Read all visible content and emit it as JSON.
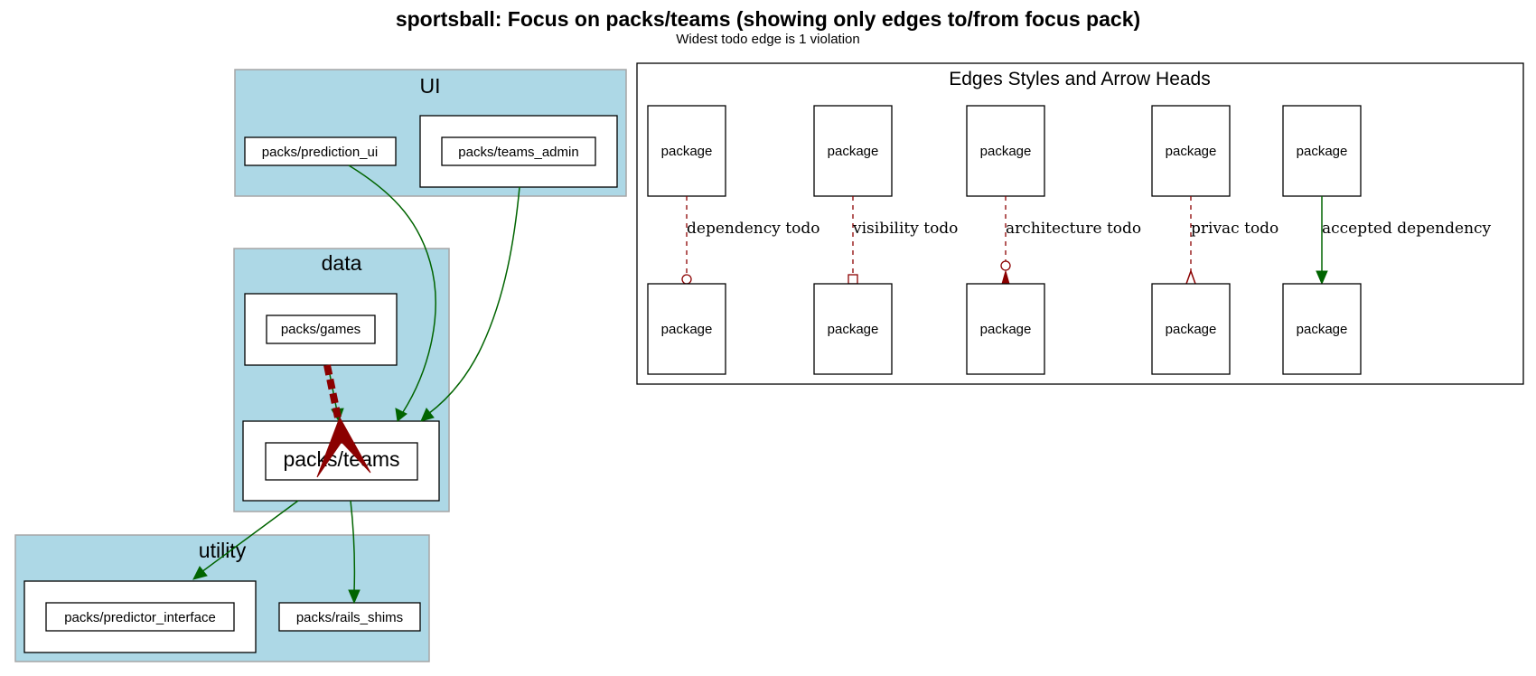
{
  "header": {
    "title": "sportsball: Focus on packs/teams (showing only edges to/from focus pack)",
    "subtitle": "Widest todo edge is 1 violation"
  },
  "clusters": {
    "ui": {
      "label": "UI"
    },
    "data": {
      "label": "data"
    },
    "utility": {
      "label": "utility"
    }
  },
  "packs": {
    "prediction_ui": "packs/prediction_ui",
    "teams_admin": "packs/teams_admin",
    "games": "packs/games",
    "teams": "packs/teams",
    "predictor_interface": "packs/predictor_interface",
    "rails_shims": "packs/rails_shims"
  },
  "legend": {
    "title": "Edges Styles and Arrow Heads",
    "node_label": "package",
    "edges": [
      {
        "label": "dependency todo",
        "style": "dashed",
        "head": "odot"
      },
      {
        "label": "visibility todo",
        "style": "dashed",
        "head": "obox"
      },
      {
        "label": "architecture todo",
        "style": "dashed",
        "head": "odot-normal"
      },
      {
        "label": "privac todo",
        "style": "dashed",
        "head": "ocrow"
      },
      {
        "label": "accepted dependency",
        "style": "solid",
        "head": "normal"
      }
    ]
  },
  "colors": {
    "cluster_fill": "#add8e6",
    "accepted_edge": "#006400",
    "todo_edge": "#8b0000"
  }
}
